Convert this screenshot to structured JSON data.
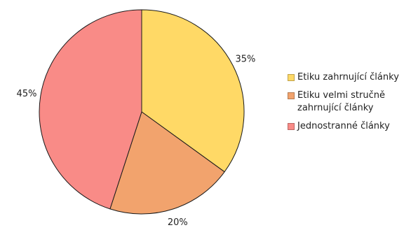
{
  "chart_data": {
    "type": "pie",
    "title": "",
    "slices": [
      {
        "label": "Etiku zahrnující články",
        "value": 35,
        "display": "35%",
        "color": "#FFD966"
      },
      {
        "label": "Etiku velmi stručně zahrnující články",
        "value": 20,
        "display": "20%",
        "color": "#F2A36D"
      },
      {
        "label": "Jednostranné články",
        "value": 45,
        "display": "45%",
        "color": "#F98B87"
      }
    ],
    "legend_position": "right",
    "start_angle": "12 o'clock",
    "direction": "clockwise"
  }
}
